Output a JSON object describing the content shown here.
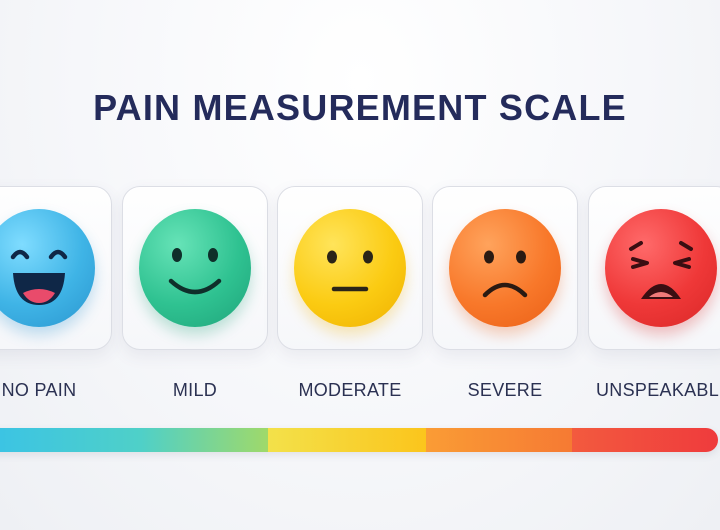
{
  "title": "PAIN MEASUREMENT SCALE",
  "levels": [
    {
      "label": "NO PAIN",
      "icon": "laughing-face-icon",
      "color": "#3fb4e6"
    },
    {
      "label": "MILD",
      "icon": "smiling-face-icon",
      "color": "#2fc291"
    },
    {
      "label": "MODERATE",
      "icon": "neutral-face-icon",
      "color": "#fbcb12"
    },
    {
      "label": "SEVERE",
      "icon": "frowning-face-icon",
      "color": "#f8782a"
    },
    {
      "label": "UNSPEAKABLE",
      "icon": "anguished-face-icon",
      "color": "#ef3838"
    }
  ],
  "scale_bar_colors": [
    "#3ac3e6",
    "#fbc51c",
    "#f67a33",
    "#ef3b3d"
  ]
}
